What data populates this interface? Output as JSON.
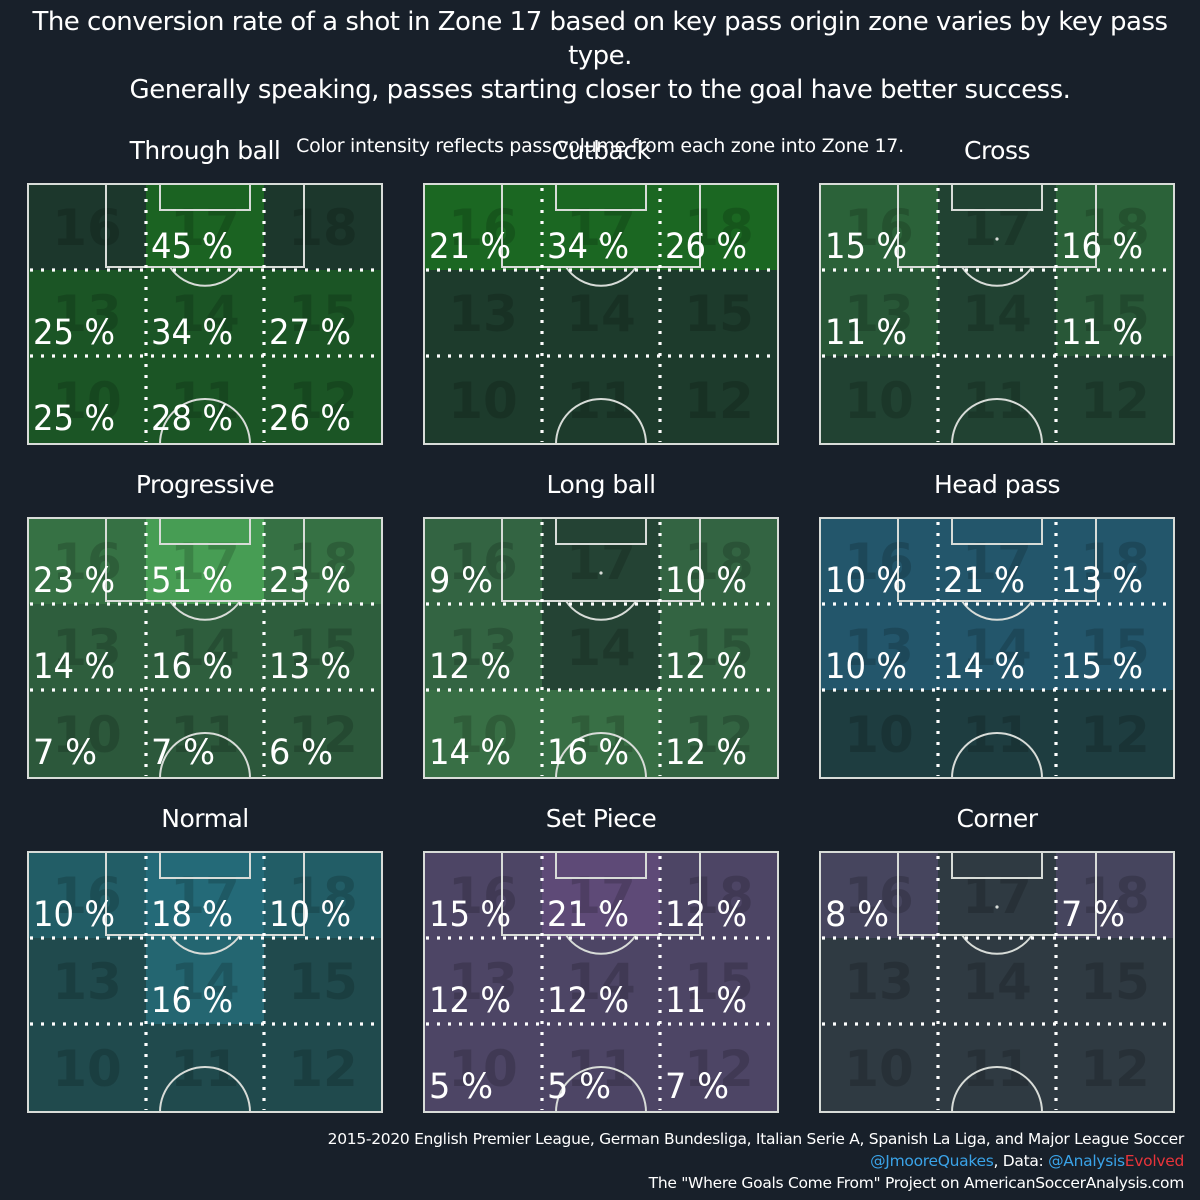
{
  "header": {
    "title_line1": "The conversion rate of a shot in Zone 17 based on key pass origin zone varies by key pass type.",
    "title_line2": "Generally speaking, passes starting closer to the goal have better success.",
    "subtitle": "Color intensity reflects pass volume from each zone into Zone 17."
  },
  "zone_numbers": [
    [
      16,
      17,
      18
    ],
    [
      13,
      14,
      15
    ],
    [
      10,
      11,
      12
    ]
  ],
  "chart_data": [
    {
      "type": "heatmap",
      "title": "Through ball",
      "color": "#1a8a1a",
      "values": [
        [
          null,
          45,
          null
        ],
        [
          25,
          34,
          27
        ],
        [
          25,
          28,
          26
        ]
      ],
      "intensity": [
        [
          0.05,
          0.55,
          0.05
        ],
        [
          0.4,
          0.4,
          0.4
        ],
        [
          0.4,
          0.4,
          0.4
        ]
      ]
    },
    {
      "type": "heatmap",
      "title": "Cutback",
      "color": "#1a8a1a",
      "values": [
        [
          21,
          34,
          26
        ],
        [
          null,
          null,
          null
        ],
        [
          null,
          null,
          null
        ]
      ],
      "intensity": [
        [
          0.6,
          0.6,
          0.6
        ],
        [
          0.1,
          0.1,
          0.1
        ],
        [
          0.1,
          0.1,
          0.1
        ]
      ]
    },
    {
      "type": "heatmap",
      "title": "Cross",
      "color": "#3f9b47",
      "values": [
        [
          15,
          null,
          16
        ],
        [
          11,
          null,
          11
        ],
        [
          null,
          null,
          null
        ]
      ],
      "intensity": [
        [
          0.45,
          0.15,
          0.45
        ],
        [
          0.35,
          0.15,
          0.35
        ],
        [
          0.15,
          0.15,
          0.15
        ]
      ]
    },
    {
      "type": "heatmap",
      "title": "Progressive",
      "color": "#4fb05a",
      "values": [
        [
          23,
          51,
          23
        ],
        [
          14,
          16,
          13
        ],
        [
          7,
          7,
          6
        ]
      ],
      "intensity": [
        [
          0.5,
          0.85,
          0.5
        ],
        [
          0.35,
          0.35,
          0.35
        ],
        [
          0.3,
          0.3,
          0.3
        ]
      ]
    },
    {
      "type": "heatmap",
      "title": "Long ball",
      "color": "#4fa05a",
      "values": [
        [
          9,
          null,
          10
        ],
        [
          12,
          null,
          12
        ],
        [
          14,
          16,
          12
        ]
      ],
      "intensity": [
        [
          0.45,
          0.15,
          0.45
        ],
        [
          0.45,
          0.15,
          0.45
        ],
        [
          0.55,
          0.55,
          0.45
        ]
      ]
    },
    {
      "type": "heatmap",
      "title": "Head pass",
      "color": "#2a7aa8",
      "values": [
        [
          10,
          21,
          13
        ],
        [
          10,
          14,
          15
        ],
        [
          null,
          null,
          null
        ]
      ],
      "intensity": [
        [
          0.5,
          0.5,
          0.5
        ],
        [
          0.5,
          0.5,
          0.5
        ],
        [
          0.15,
          0.15,
          0.15
        ]
      ]
    },
    {
      "type": "heatmap",
      "title": "Normal",
      "color": "#2a90aa",
      "values": [
        [
          10,
          18,
          10
        ],
        [
          null,
          16,
          null
        ],
        [
          null,
          null,
          null
        ]
      ],
      "intensity": [
        [
          0.45,
          0.6,
          0.45
        ],
        [
          0.25,
          0.55,
          0.25
        ],
        [
          0.25,
          0.25,
          0.25
        ]
      ]
    },
    {
      "type": "heatmap",
      "title": "Set Piece",
      "color": "#8a5aa8",
      "values": [
        [
          15,
          21,
          12
        ],
        [
          12,
          12,
          11
        ],
        [
          5,
          5,
          7
        ]
      ],
      "intensity": [
        [
          0.45,
          0.6,
          0.45
        ],
        [
          0.45,
          0.45,
          0.45
        ],
        [
          0.45,
          0.45,
          0.45
        ]
      ]
    },
    {
      "type": "heatmap",
      "title": "Corner",
      "color": "#7a5a98",
      "values": [
        [
          8,
          null,
          7
        ],
        [
          null,
          null,
          null
        ],
        [
          null,
          null,
          null
        ]
      ],
      "intensity": [
        [
          0.45,
          0.2,
          0.45
        ],
        [
          0.2,
          0.2,
          0.2
        ],
        [
          0.2,
          0.2,
          0.2
        ]
      ]
    }
  ],
  "footer": {
    "leagues": "2015-2020 English Premier League, German Bundesliga, Italian Serie A, Spanish La Liga, and Major League Soccer",
    "author_handle": "@JmooreQuakes",
    "data_label": ", Data: ",
    "data_handle_a": "@Analysis",
    "data_handle_b": "Evolved",
    "project": "The \"Where Goals Come From\" Project on AmericanSoccerAnalysis.com"
  },
  "colors": {
    "background": "#18202a",
    "cell_base": "#1d332e",
    "line": "#d8dcd8",
    "twitter_blue": "#3aa3e8",
    "brand_red": "#e8343a"
  }
}
